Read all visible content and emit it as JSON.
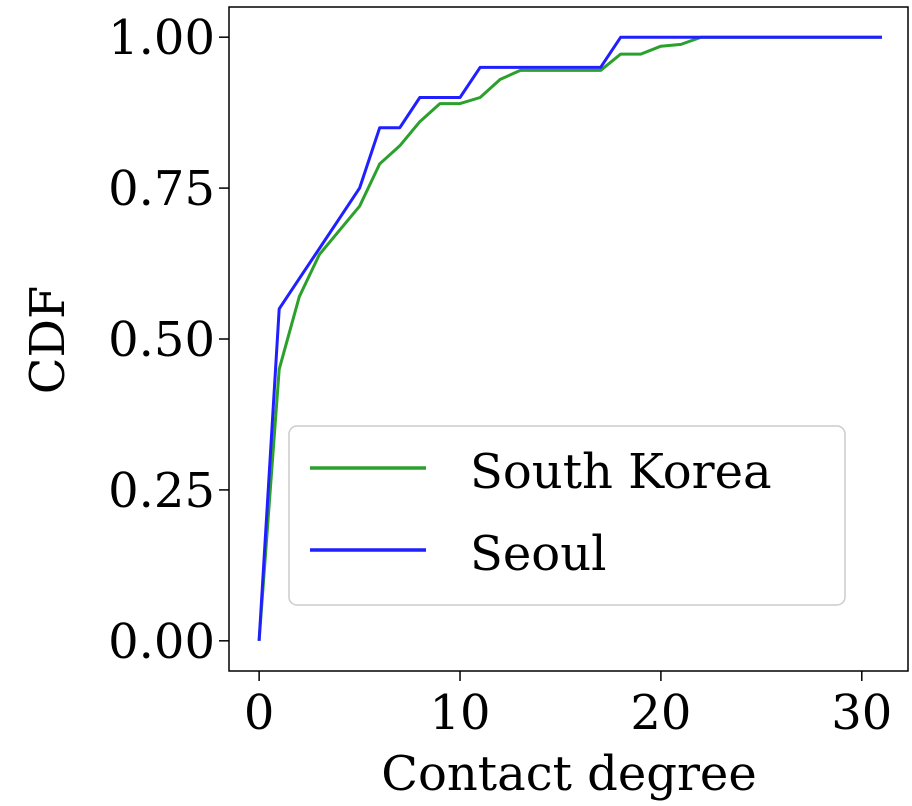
{
  "chart_data": {
    "type": "line",
    "title": "",
    "xlabel": "Contact degree",
    "ylabel": "CDF",
    "xlim": [
      -1.5,
      32.3
    ],
    "ylim": [
      -0.05,
      1.05
    ],
    "xticks": [
      0,
      10,
      20,
      30
    ],
    "yticks": [
      0,
      0.25,
      0.5,
      0.75,
      1.0
    ],
    "xtick_labels": [
      "0",
      "10",
      "20",
      "30"
    ],
    "ytick_labels": [
      "0.00",
      "0.25",
      "0.50",
      "0.75",
      "1.00"
    ],
    "grid": false,
    "legend": {
      "position": "lower-right"
    },
    "series": [
      {
        "name": "South Korea",
        "color": "#2ca02c",
        "x": [
          0,
          1,
          2,
          3,
          4,
          5,
          6,
          7,
          8,
          9,
          10,
          11,
          12,
          13,
          14,
          15,
          16,
          17,
          18,
          19,
          20,
          21,
          22,
          23,
          24,
          25,
          26,
          27,
          28,
          29,
          30,
          31
        ],
        "y": [
          0.0,
          0.45,
          0.57,
          0.64,
          0.68,
          0.72,
          0.79,
          0.82,
          0.86,
          0.89,
          0.89,
          0.9,
          0.93,
          0.945,
          0.945,
          0.945,
          0.945,
          0.945,
          0.972,
          0.972,
          0.985,
          0.988,
          1.0,
          1.0,
          1.0,
          1.0,
          1.0,
          1.0,
          1.0,
          1.0,
          1.0,
          1.0
        ]
      },
      {
        "name": "Seoul",
        "color": "#1f1fff",
        "x": [
          0,
          1,
          2,
          3,
          4,
          5,
          6,
          7,
          8,
          9,
          10,
          11,
          12,
          13,
          14,
          15,
          16,
          17,
          18,
          19,
          20,
          21,
          22,
          23,
          24,
          25,
          26,
          27,
          28,
          29,
          30,
          31
        ],
        "y": [
          0.0,
          0.55,
          0.6,
          0.65,
          0.7,
          0.75,
          0.85,
          0.85,
          0.9,
          0.9,
          0.9,
          0.95,
          0.95,
          0.95,
          0.95,
          0.95,
          0.95,
          0.95,
          1.0,
          1.0,
          1.0,
          1.0,
          1.0,
          1.0,
          1.0,
          1.0,
          1.0,
          1.0,
          1.0,
          1.0,
          1.0,
          1.0
        ]
      }
    ]
  }
}
